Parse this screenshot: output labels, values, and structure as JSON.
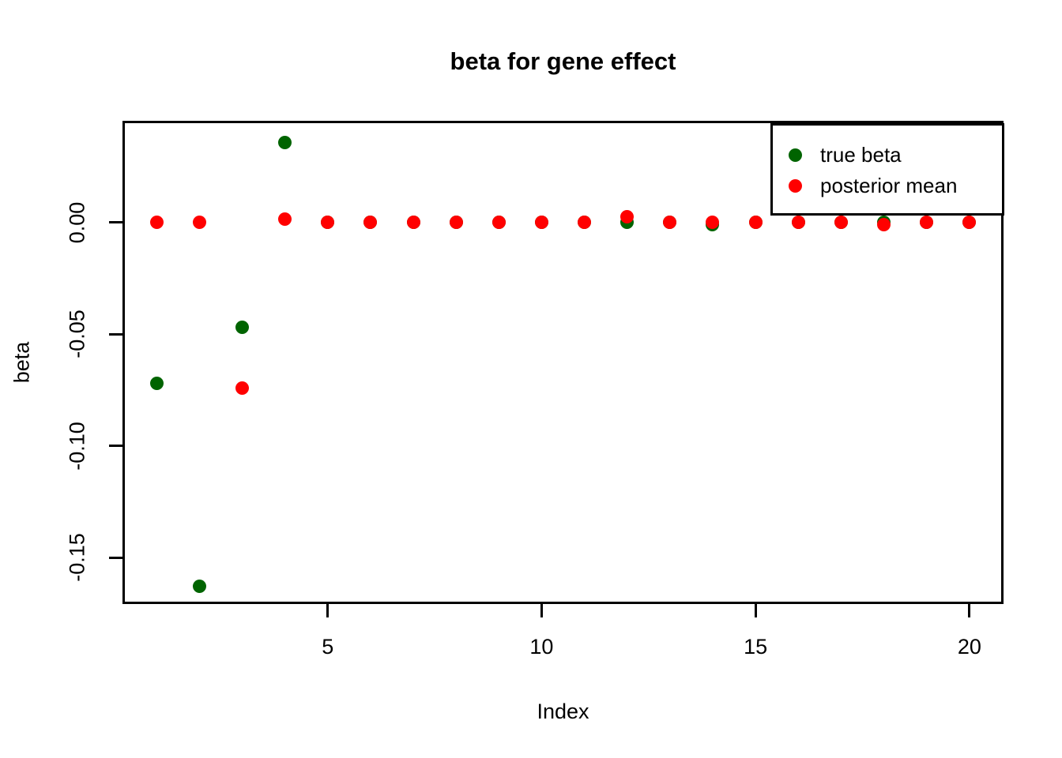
{
  "chart_data": {
    "type": "scatter",
    "title": "beta for gene effect",
    "xlabel": "Index",
    "ylabel": "beta",
    "x": [
      1,
      2,
      3,
      4,
      5,
      6,
      7,
      8,
      9,
      10,
      11,
      12,
      13,
      14,
      15,
      16,
      17,
      18,
      19,
      20
    ],
    "series": [
      {
        "name": "true beta",
        "color": "#006400",
        "values": [
          -0.072,
          -0.163,
          -0.047,
          0.036,
          0,
          0,
          0,
          0,
          0,
          0,
          0,
          0,
          0,
          -0.001,
          0,
          0,
          0,
          0,
          0,
          0
        ]
      },
      {
        "name": "posterior mean",
        "color": "#FF0000",
        "values": [
          0,
          0,
          -0.074,
          0.0015,
          0,
          0,
          0,
          0,
          0,
          0,
          0,
          0.0025,
          0,
          0,
          0,
          0,
          0,
          -0.001,
          0,
          0
        ]
      }
    ],
    "xlim": [
      0.24,
      20.76
    ],
    "ylim": [
      -0.1698,
      0.0449
    ],
    "xticks": {
      "values": [
        5,
        10,
        15,
        20
      ],
      "labels": [
        "5",
        "10",
        "15",
        "20"
      ]
    },
    "yticks": {
      "values": [
        0,
        -0.05,
        -0.1,
        -0.15
      ],
      "labels": [
        "0.00",
        "-0.05",
        "-0.10",
        "-0.15"
      ]
    },
    "grid": false,
    "legend_position": "top-right",
    "point_style": "filled-circle"
  },
  "legend": {
    "items": [
      {
        "label": "true beta",
        "color": "#006400"
      },
      {
        "label": "posterior mean",
        "color": "#FF0000"
      }
    ]
  }
}
